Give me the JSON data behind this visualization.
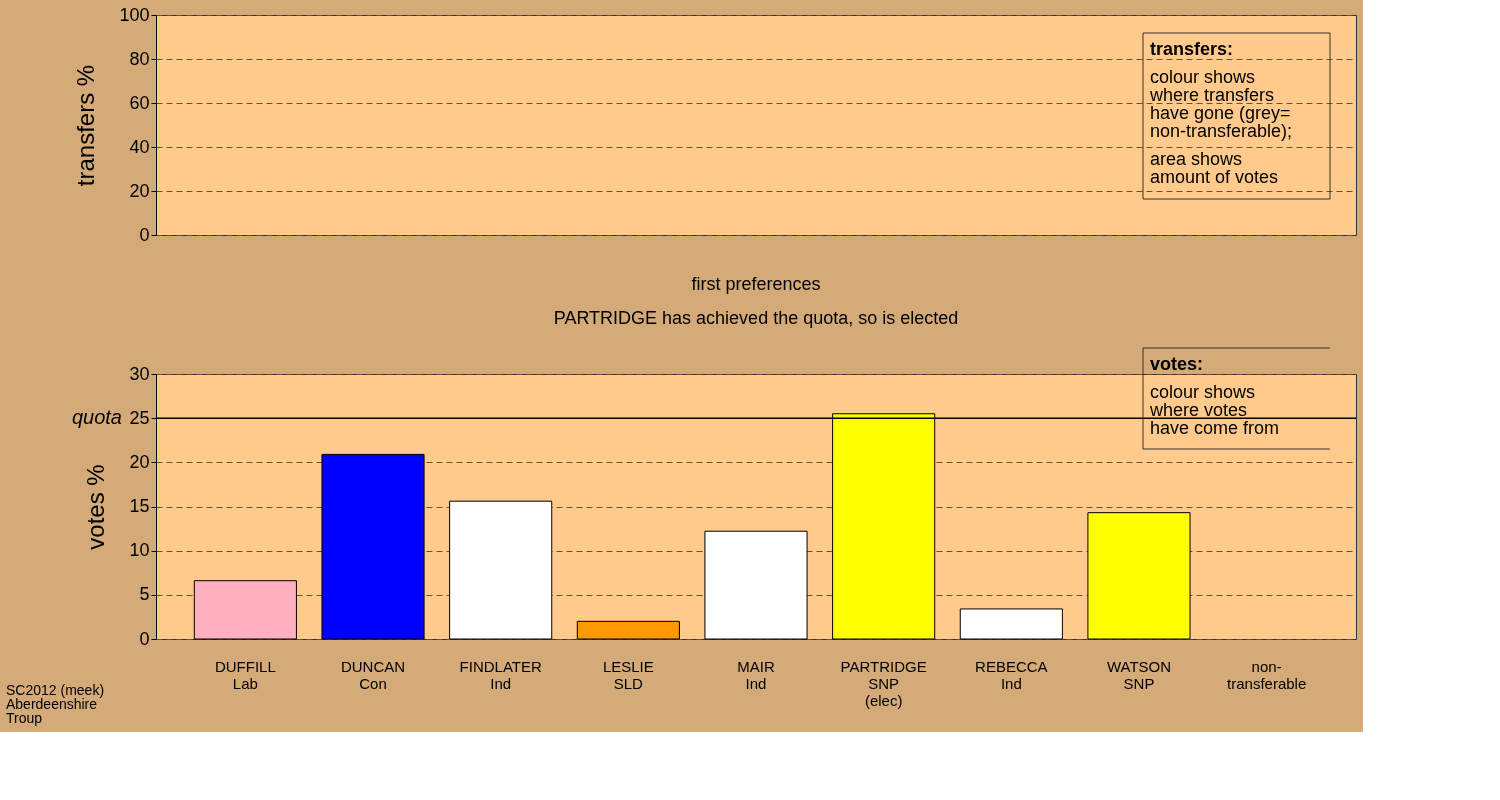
{
  "chart_data": [
    {
      "type": "bar",
      "ylabel": "transfers %",
      "categories": [
        null,
        null,
        null,
        null,
        null,
        null,
        null,
        null,
        null
      ],
      "values": [
        null,
        null,
        null,
        null,
        null,
        null,
        null,
        null,
        null
      ],
      "ylim": [
        0,
        100
      ],
      "yticks": [
        0,
        20,
        40,
        60,
        80,
        100
      ],
      "grid": "y",
      "tick_labels": "y",
      "annotations": [
        "transfers:",
        "colour shows\nwhere transfers\nhave gone (grey=\nnon-transferable);",
        "area shows\namount of votes"
      ]
    },
    {
      "type": "bar",
      "title": "first preferences",
      "subtitle": "PARTRIDGE has achieved the quota, so is elected",
      "ylabel": "votes %",
      "categories": [
        "DUFFILL\nLab",
        "DUNCAN\nCon",
        "FINDLATER\nInd",
        "LESLIE\nSLD",
        "MAIR\nInd",
        "PARTRIDGE\nSNP\n(elec)",
        "REBECCA\nInd",
        "WATSON\nSNP",
        "non-\ntransferable"
      ],
      "values": [
        6.6,
        20.9,
        15.6,
        2.0,
        12.2,
        25.5,
        3.4,
        14.3,
        null
      ],
      "colors": [
        "#ffb0c0",
        "#0000ff",
        "#ffffff",
        "#ff9900",
        "#ffffff",
        "#ffff00",
        "#ffffff",
        "#ffff00",
        "#808080"
      ],
      "ylim": [
        0,
        30
      ],
      "yticks": [
        0,
        5,
        10,
        15,
        20,
        25,
        30
      ],
      "grid": "y",
      "ref_lines": [
        {
          "axis": "y",
          "value": 25,
          "label": "quota"
        }
      ],
      "annotations": [
        "votes:",
        "colour shows\nwhere votes\nhave come from",
        "SC2012 (meek)\nAberdeenshire\nTroup"
      ]
    }
  ]
}
